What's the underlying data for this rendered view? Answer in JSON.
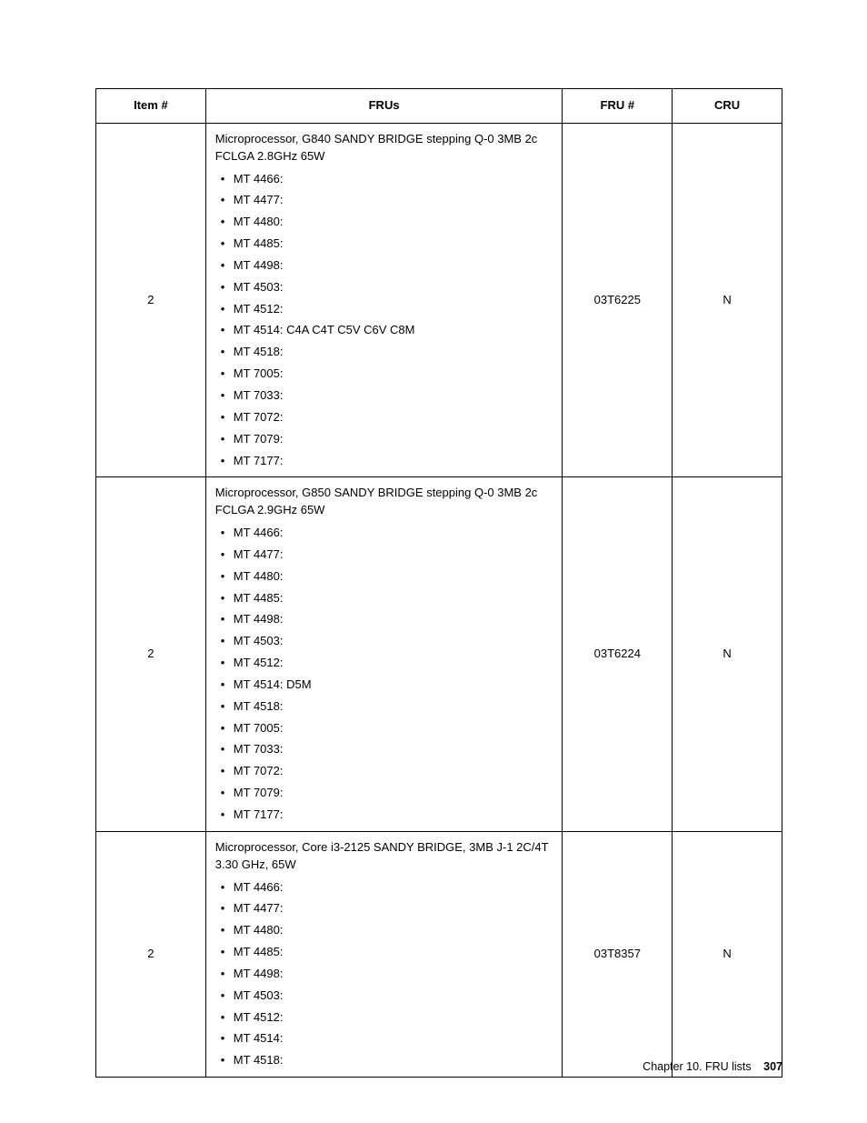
{
  "table": {
    "columns": [
      "Item #",
      "FRUs",
      "FRU #",
      "CRU"
    ],
    "col_widths_pct": [
      16,
      52,
      16,
      16
    ],
    "rows": [
      {
        "item": "2",
        "desc": "Microprocessor, G840 SANDY BRIDGE stepping Q-0 3MB 2c FCLGA 2.8GHz 65W",
        "bullets": [
          "MT 4466:",
          "MT 4477:",
          "MT 4480:",
          "MT 4485:",
          "MT 4498:",
          "MT 4503:",
          "MT 4512:",
          "MT 4514: C4A C4T C5V C6V C8M",
          "MT 4518:",
          "MT 7005:",
          "MT 7033:",
          "MT 7072:",
          "MT 7079:",
          "MT 7177:"
        ],
        "frunum": "03T6225",
        "cru": "N"
      },
      {
        "item": "2",
        "desc": "Microprocessor, G850 SANDY BRIDGE stepping Q-0 3MB 2c FCLGA 2.9GHz 65W",
        "bullets": [
          "MT 4466:",
          "MT 4477:",
          "MT 4480:",
          "MT 4485:",
          "MT 4498:",
          "MT 4503:",
          "MT 4512:",
          "MT 4514: D5M",
          "MT 4518:",
          "MT 7005:",
          "MT 7033:",
          "MT 7072:",
          "MT 7079:",
          "MT 7177:"
        ],
        "frunum": "03T6224",
        "cru": "N"
      },
      {
        "item": "2",
        "desc": "Microprocessor, Core i3-2125 SANDY BRIDGE, 3MB J-1 2C/4T 3.30 GHz, 65W",
        "bullets": [
          "MT 4466:",
          "MT 4477:",
          "MT 4480:",
          "MT 4485:",
          "MT 4498:",
          "MT 4503:",
          "MT 4512:",
          "MT 4514:",
          "MT 4518:"
        ],
        "frunum": "03T8357",
        "cru": "N"
      }
    ]
  },
  "footer": {
    "chapter": "Chapter 10. FRU lists",
    "page": "307"
  }
}
